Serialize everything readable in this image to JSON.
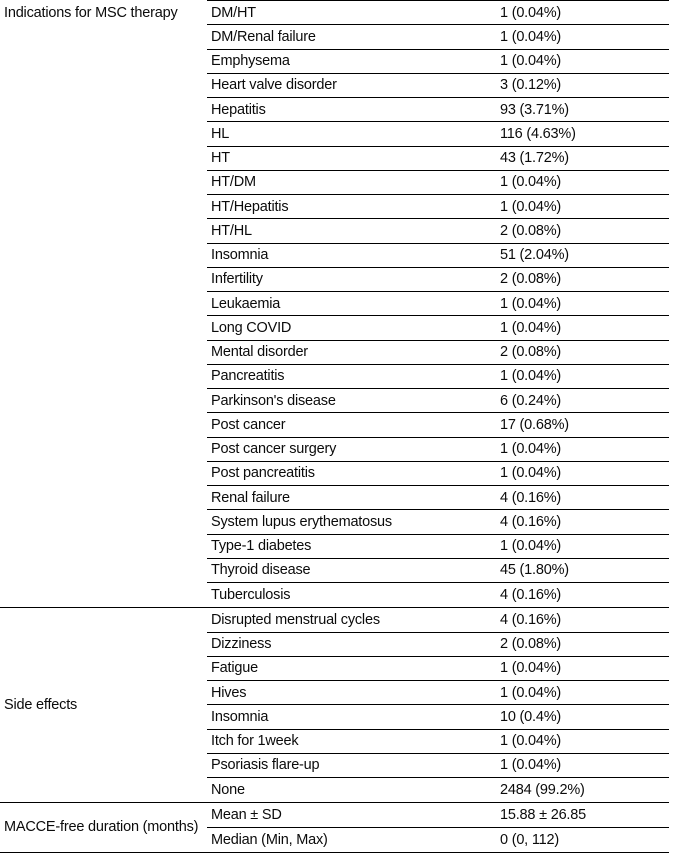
{
  "table": {
    "description": "Clinical characteristics table with indications for MSC therapy, side effects, and MACCE-free duration",
    "colors": {
      "text": "#0b0b0b",
      "line": "#000000",
      "background": "#ffffff"
    },
    "sections": [
      {
        "label": "Indications for MSC therapy",
        "rows": [
          {
            "attr": "DM/HT",
            "value": "1 (0.04%)"
          },
          {
            "attr": "DM/Renal failure",
            "value": "1 (0.04%)"
          },
          {
            "attr": "Emphysema",
            "value": "1 (0.04%)"
          },
          {
            "attr": "Heart valve disorder",
            "value": "3 (0.12%)"
          },
          {
            "attr": "Hepatitis",
            "value": "93 (3.71%)"
          },
          {
            "attr": "HL",
            "value": "116 (4.63%)"
          },
          {
            "attr": "HT",
            "value": "43 (1.72%)"
          },
          {
            "attr": "HT/DM",
            "value": "1 (0.04%)"
          },
          {
            "attr": "HT/Hepatitis",
            "value": "1 (0.04%)"
          },
          {
            "attr": "HT/HL",
            "value": "2 (0.08%)"
          },
          {
            "attr": "Insomnia",
            "value": "51 (2.04%)"
          },
          {
            "attr": "Infertility",
            "value": "2 (0.08%)"
          },
          {
            "attr": "Leukaemia",
            "value": "1 (0.04%)"
          },
          {
            "attr": "Long COVID",
            "value": "1 (0.04%)"
          },
          {
            "attr": "Mental disorder",
            "value": "2 (0.08%)"
          },
          {
            "attr": "Pancreatitis",
            "value": "1 (0.04%)"
          },
          {
            "attr": "Parkinson's disease",
            "value": "6 (0.24%)"
          },
          {
            "attr": "Post cancer",
            "value": "17 (0.68%)"
          },
          {
            "attr": "Post cancer surgery",
            "value": "1 (0.04%)"
          },
          {
            "attr": "Post pancreatitis",
            "value": "1 (0.04%)"
          },
          {
            "attr": "Renal failure",
            "value": "4 (0.16%)"
          },
          {
            "attr": "System lupus erythematosus",
            "value": "4 (0.16%)"
          },
          {
            "attr": "Type-1 diabetes",
            "value": "1 (0.04%)"
          },
          {
            "attr": "Thyroid disease",
            "value": "45 (1.80%)"
          },
          {
            "attr": "Tuberculosis",
            "value": "4 (0.16%)"
          }
        ]
      },
      {
        "label": "Side effects",
        "rows": [
          {
            "attr": "Disrupted menstrual cycles",
            "value": "4 (0.16%)"
          },
          {
            "attr": "Dizziness",
            "value": "2 (0.08%)"
          },
          {
            "attr": "Fatigue",
            "value": "1 (0.04%)"
          },
          {
            "attr": "Hives",
            "value": "1 (0.04%)"
          },
          {
            "attr": "Insomnia",
            "value": "10 (0.4%)"
          },
          {
            "attr": "Itch for 1week",
            "value": "1 (0.04%)"
          },
          {
            "attr": "Psoriasis flare-up",
            "value": "1 (0.04%)"
          },
          {
            "attr": "None",
            "value": "2484 (99.2%)"
          }
        ]
      },
      {
        "label": "MACCE-free duration (months)",
        "rows": [
          {
            "attr": "Mean ± SD",
            "value": "15.88 ± 26.85"
          },
          {
            "attr": "Median (Min, Max)",
            "value": "0 (0, 112)"
          }
        ]
      }
    ]
  }
}
